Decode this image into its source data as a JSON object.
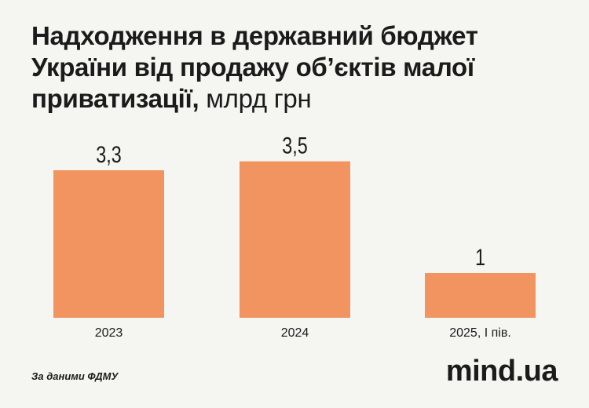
{
  "title": {
    "main": "Надходження в державний бюджет України від продажу об’єктів малої приватизації,",
    "unit": "млрд грн"
  },
  "chart_data": {
    "type": "bar",
    "categories": [
      "2023",
      "2024",
      "2025, I пів."
    ],
    "values": [
      3.3,
      3.5,
      1
    ],
    "value_labels": [
      "3,3",
      "3,5",
      "1"
    ],
    "unit": "млрд грн",
    "bar_color": "#f2945f",
    "grid": false,
    "legend": "none"
  },
  "footer": {
    "source": "За даними ФДМУ",
    "logo": "mind.ua"
  }
}
